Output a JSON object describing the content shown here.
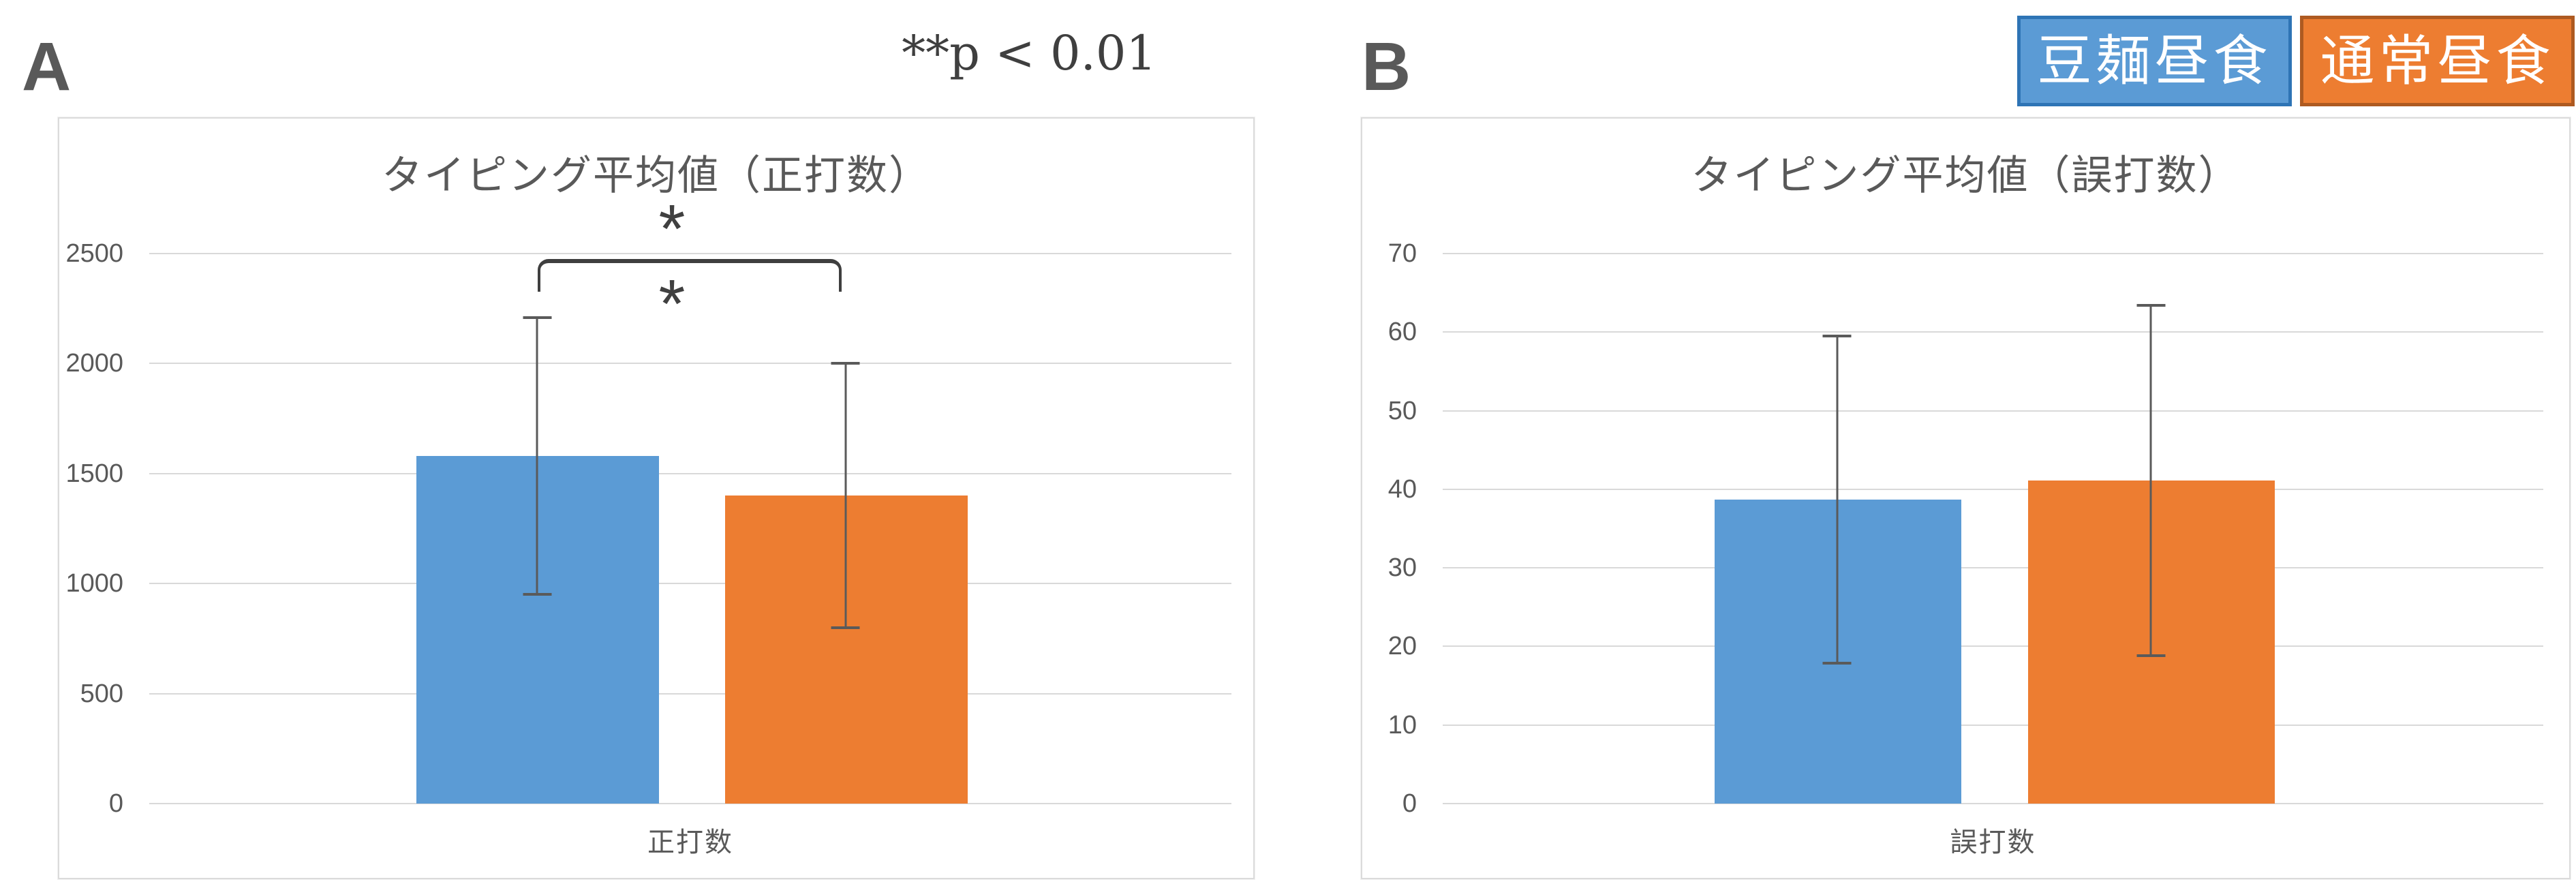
{
  "figure_labels": {
    "panel_a": "A",
    "panel_b": "B"
  },
  "significance_note": "**p < 0.01",
  "legend": [
    {
      "label": "豆麺昼食",
      "fill": "#5B9BD5",
      "border": "#2E74B5"
    },
    {
      "label": "通常昼食",
      "fill": "#ED7D31",
      "border": "#AE5A21"
    }
  ],
  "colors": {
    "series_blue": "#5B9BD5",
    "series_orange": "#ED7D31",
    "gridline": "#D9D9D9",
    "axis_text": "#595959",
    "error_bar": "#5A5A5A",
    "bracket": "#3F3F3F"
  },
  "chart_data": [
    {
      "id": "chartA",
      "type": "bar",
      "title": "タイピング平均値（正打数）",
      "category": "正打数",
      "xlabel": "",
      "ylabel": "",
      "ylim": [
        0,
        2500
      ],
      "ytick_step": 500,
      "yticks": [
        0,
        500,
        1000,
        1500,
        2000,
        2500
      ],
      "grid": true,
      "series": [
        {
          "name": "豆麺昼食",
          "mean": 1580,
          "error": 630,
          "color": "#5B9BD5"
        },
        {
          "name": "通常昼食",
          "mean": 1400,
          "error": 600,
          "color": "#ED7D31"
        }
      ],
      "significance": {
        "upper": "*",
        "lower": "*"
      }
    },
    {
      "id": "chartB",
      "type": "bar",
      "title": "タイピング平均値（誤打数）",
      "category": "誤打数",
      "xlabel": "",
      "ylabel": "",
      "ylim": [
        0,
        70
      ],
      "ytick_step": 10,
      "yticks": [
        0,
        10,
        20,
        30,
        40,
        50,
        60,
        70
      ],
      "grid": true,
      "series": [
        {
          "name": "豆麺昼食",
          "mean": 38.7,
          "error": 20.8,
          "color": "#5B9BD5"
        },
        {
          "name": "通常昼食",
          "mean": 41.1,
          "error": 22.3,
          "color": "#ED7D31"
        }
      ]
    }
  ]
}
